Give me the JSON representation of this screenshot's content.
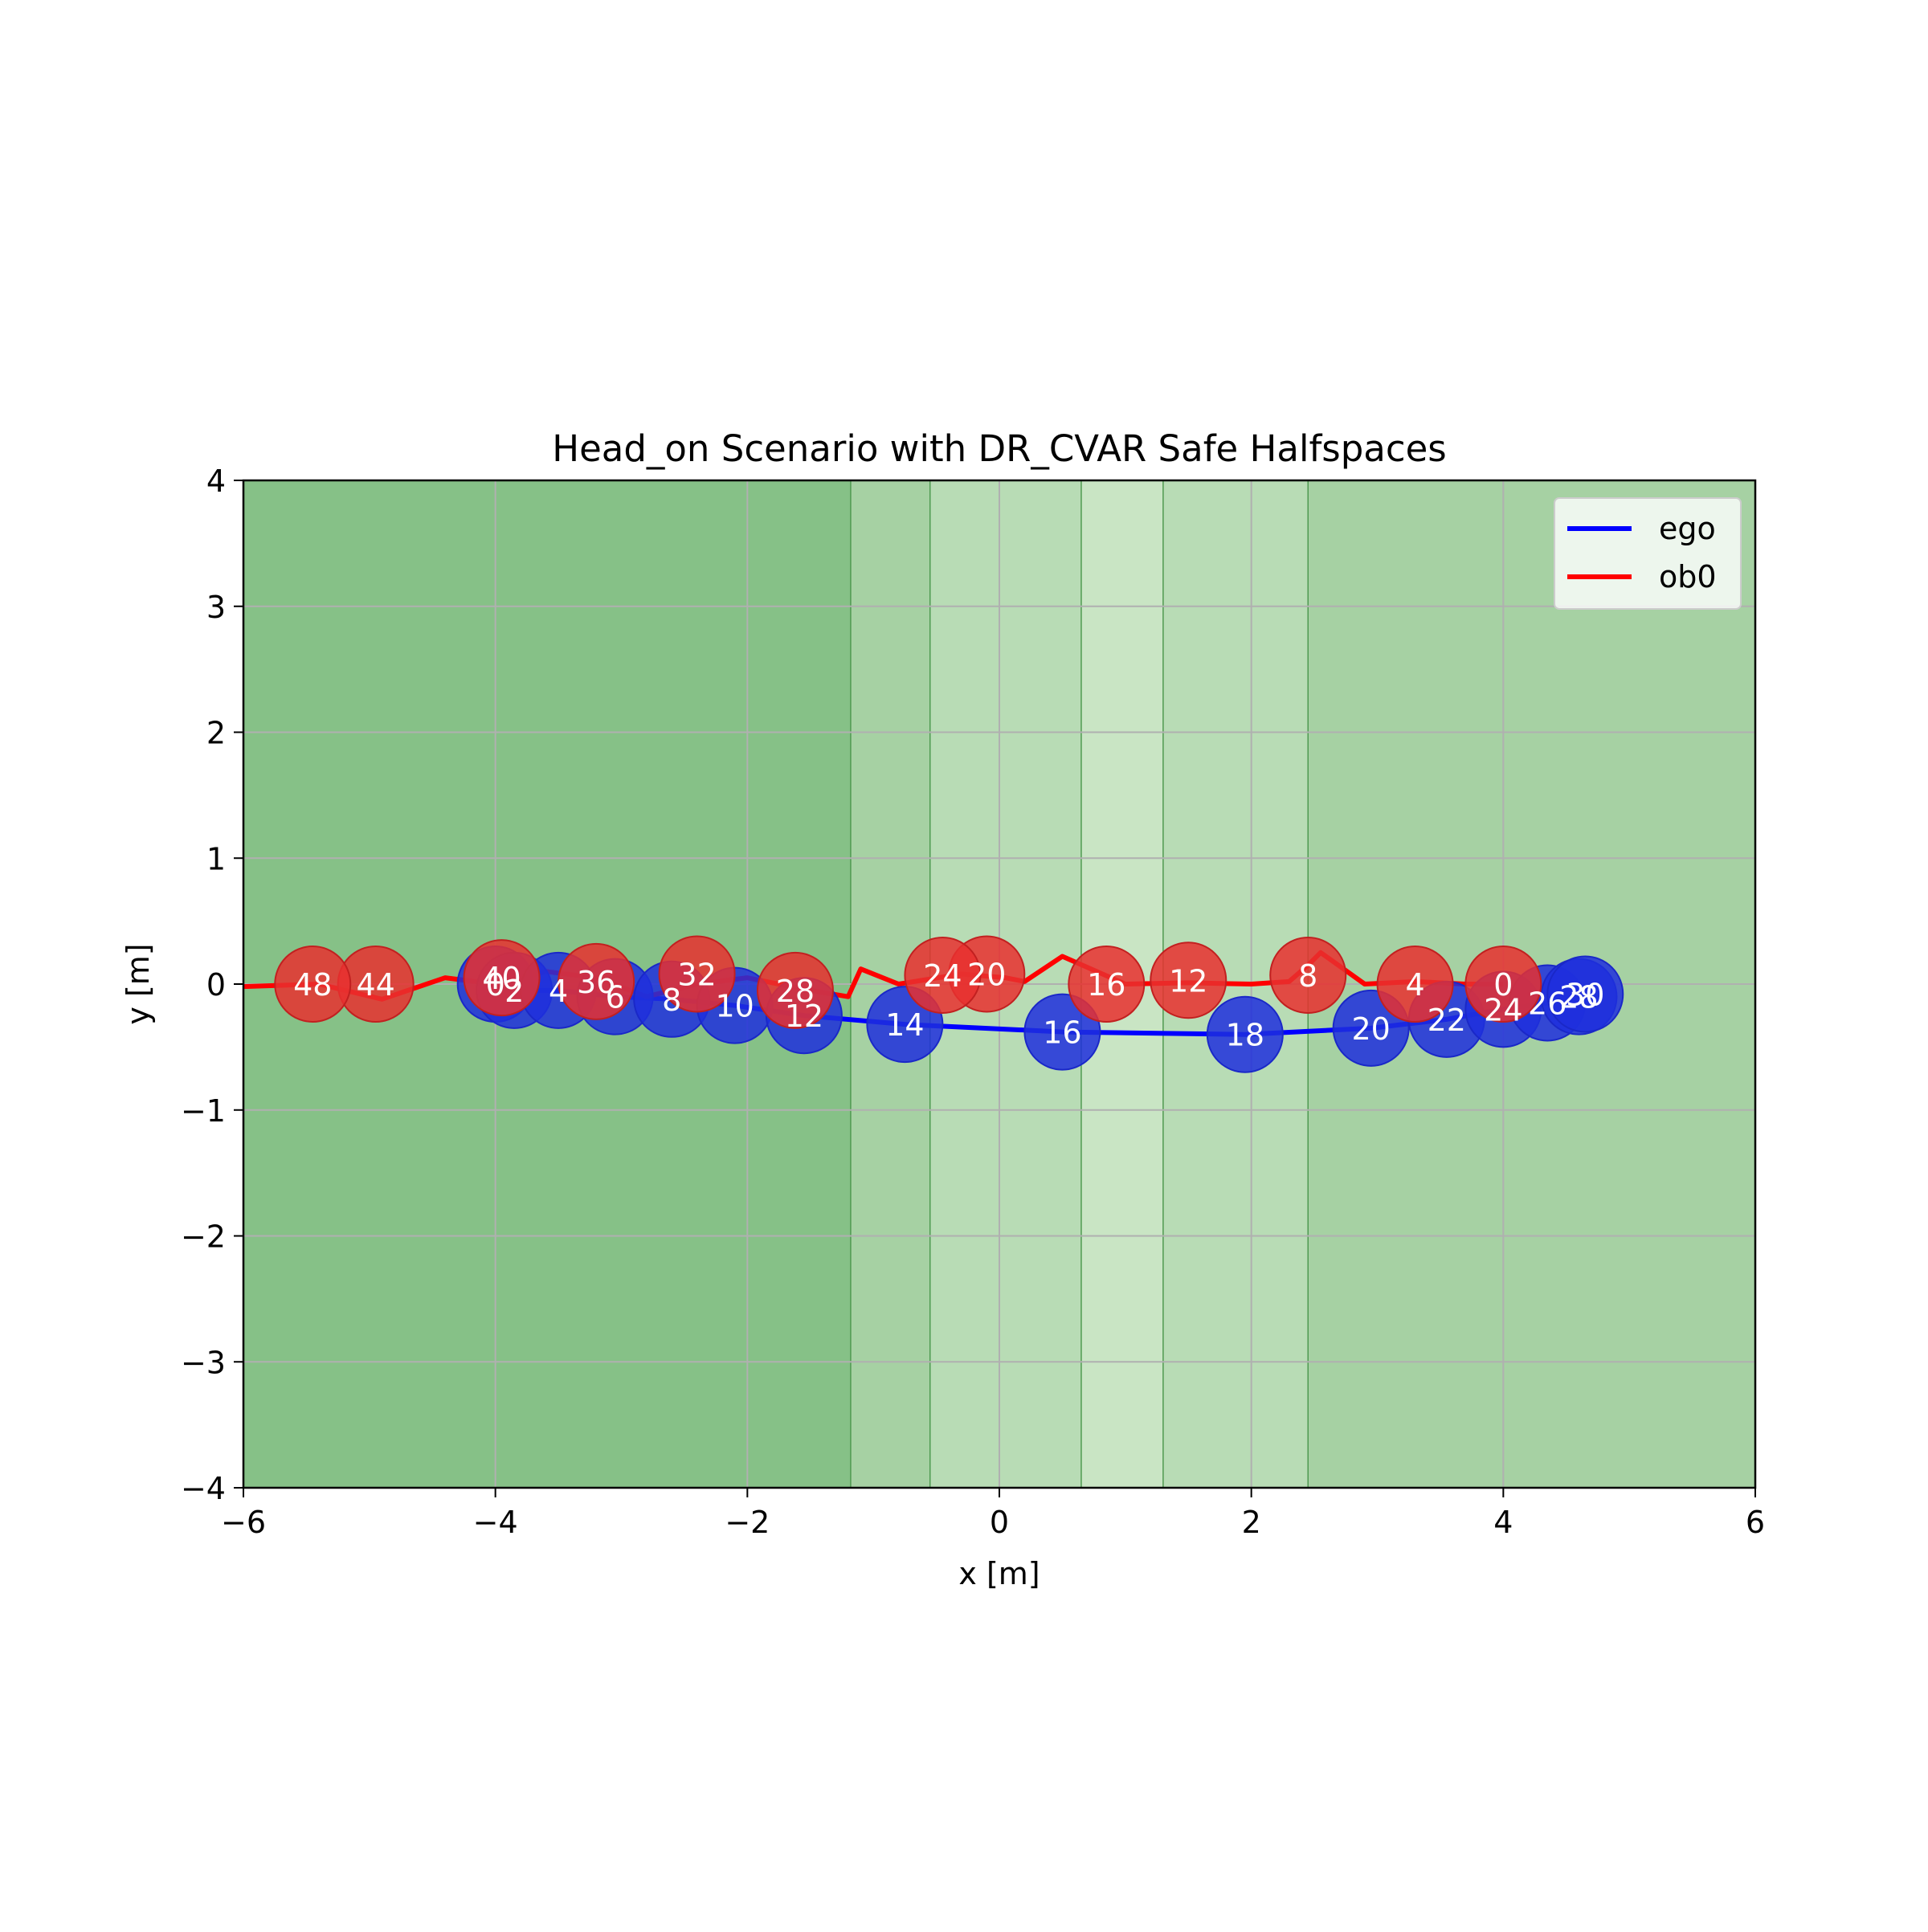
{
  "chart_data": {
    "type": "line",
    "title": "Head_on Scenario with DR_CVAR Safe Halfspaces",
    "xlabel": "x [m]",
    "ylabel": "y [m]",
    "xlim": [
      -6,
      6
    ],
    "ylim": [
      -4,
      4
    ],
    "xticks": [
      "−6",
      "−4",
      "−2",
      "0",
      "2",
      "4",
      "6"
    ],
    "yticks": [
      "−4",
      "−3",
      "−2",
      "−1",
      "0",
      "1",
      "2",
      "3",
      "4"
    ],
    "grid": true,
    "legend": {
      "placement": "top-right",
      "entries": [
        "ego",
        "ob0"
      ]
    },
    "colors": {
      "ego": "#0000ff",
      "ego_marker": "#1f2fdd",
      "ob0": "#ff0000",
      "ob0_marker": "#e8302f",
      "region_dark": "#86c187",
      "region_medium": "#a6d1a3",
      "region_light": "#b8dcb5",
      "grid": "#b0b0b0"
    },
    "series": [
      {
        "name": "ego",
        "x": [
          -4.0,
          -3.85,
          -3.5,
          -3.05,
          -2.6,
          -2.1,
          -1.55,
          -0.75,
          0.5,
          1.95,
          2.95,
          3.55,
          4.0,
          4.35,
          4.6,
          4.65
        ],
        "y": [
          0.0,
          -0.05,
          -0.05,
          -0.1,
          -0.12,
          -0.17,
          -0.25,
          -0.32,
          -0.38,
          -0.4,
          -0.35,
          -0.28,
          -0.2,
          -0.15,
          -0.1,
          -0.08
        ],
        "marker_labels": [
          "0",
          "2",
          "4",
          "6",
          "8",
          "10",
          "12",
          "14",
          "16",
          "18",
          "20",
          "22",
          "24",
          "26",
          "28",
          "30"
        ]
      },
      {
        "name": "ob0",
        "x": [
          4.0,
          3.7,
          3.3,
          2.9,
          2.55,
          2.45,
          2.3,
          2.0,
          1.5,
          1.0,
          0.5,
          0.2,
          0.05,
          -0.3,
          -0.8,
          -1.1,
          -1.2,
          -1.5,
          -2.0,
          -2.4,
          -2.8,
          -3.2,
          -3.6,
          -4.0,
          -4.4,
          -4.9,
          -5.4,
          -6.0
        ],
        "y": [
          0.0,
          0.0,
          0.02,
          0.0,
          0.25,
          0.15,
          0.02,
          0.0,
          0.01,
          0.0,
          0.22,
          0.02,
          0.05,
          0.08,
          0.0,
          0.12,
          -0.1,
          -0.05,
          0.05,
          0.0,
          -0.1,
          0.05,
          0.1,
          0.0,
          0.05,
          -0.12,
          0.0,
          -0.02
        ],
        "marker_x": [
          4.0,
          3.3,
          2.45,
          1.5,
          0.85,
          -0.1,
          -0.45,
          -1.62,
          -2.4,
          -3.2,
          -3.95,
          -4.95,
          -5.45
        ],
        "marker_y": [
          0.0,
          0.0,
          0.07,
          0.03,
          0.0,
          0.08,
          0.07,
          -0.05,
          0.08,
          0.02,
          0.05,
          0.0,
          0.0
        ],
        "marker_labels": [
          "0",
          "4",
          "8",
          "12",
          "16",
          "20",
          "24",
          "28",
          "32",
          "36",
          "40",
          "44",
          "48"
        ]
      }
    ],
    "regions": [
      {
        "x_range": [
          -6.0,
          -1.18
        ],
        "shade": "region_dark"
      },
      {
        "x_range": [
          -1.18,
          -0.55
        ],
        "shade": "region_medium"
      },
      {
        "x_range": [
          -0.55,
          0.65
        ],
        "shade": "region_light"
      },
      {
        "x_range": [
          0.65,
          1.3
        ],
        "shade": "region_lighter"
      },
      {
        "x_range": [
          1.3,
          2.45
        ],
        "shade": "region_light"
      },
      {
        "x_range": [
          2.45,
          6.0
        ],
        "shade": "region_medium"
      }
    ]
  }
}
